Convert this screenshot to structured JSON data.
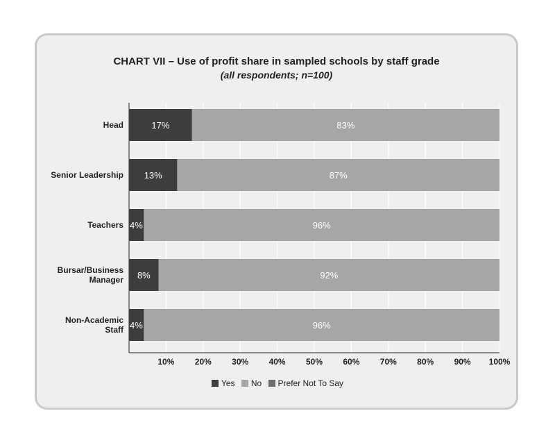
{
  "chart_data": {
    "type": "bar",
    "orientation": "horizontal",
    "stacked": true,
    "title": "CHART VII – Use of profit share in sampled schools by staff grade",
    "subtitle": "(all respondents; n=100)",
    "categories": [
      [
        "Head"
      ],
      [
        "Senior Leadership"
      ],
      [
        "Teachers"
      ],
      [
        "Bursar/Business",
        "Manager"
      ],
      [
        "Non-Academic",
        "Staff"
      ]
    ],
    "series": [
      {
        "name": "Yes",
        "color": "#3d3d3d",
        "values": [
          17,
          13,
          4,
          8,
          4
        ],
        "labels": [
          "17%",
          "13%",
          "4%",
          "8%",
          "4%"
        ]
      },
      {
        "name": "No",
        "color": "#a6a6a6",
        "values": [
          83,
          87,
          96,
          92,
          96
        ],
        "labels": [
          "83%",
          "87%",
          "96%",
          "92%",
          "96%"
        ]
      },
      {
        "name": "Prefer Not To Say",
        "color": "#6e6e6e",
        "values": [
          0,
          0,
          0,
          0,
          0
        ],
        "labels": [
          "",
          "",
          "",
          "",
          ""
        ]
      }
    ],
    "xlim": [
      0,
      100
    ],
    "xticks": [
      10,
      20,
      30,
      40,
      50,
      60,
      70,
      80,
      90,
      100
    ],
    "xtick_labels": [
      "10%",
      "20%",
      "30%",
      "40%",
      "50%",
      "60%",
      "70%",
      "80%",
      "90%",
      "100%"
    ],
    "grid": true,
    "legend_position": "bottom"
  }
}
